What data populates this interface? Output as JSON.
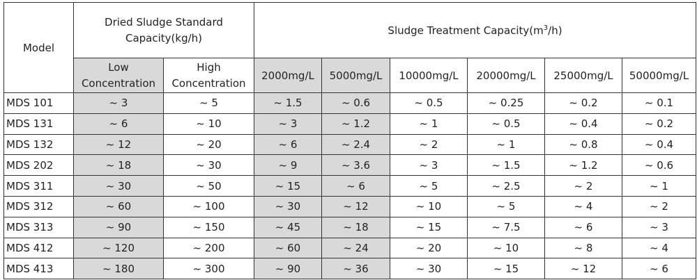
{
  "table": {
    "header": {
      "model": "Model",
      "dried_group": "Dried Sludge Standard Capacity(kg/h)",
      "treatment_group_prefix": "Sludge Treatment Capacity(m",
      "treatment_group_sup": "3",
      "treatment_group_suffix": "/h)",
      "sub": [
        "Low Concentration",
        "High Concentration",
        "2000mg/L",
        "5000mg/L",
        "10000mg/L",
        "20000mg/L",
        "25000mg/L",
        "50000mg/L"
      ]
    },
    "rows": [
      {
        "model": "MDS 101",
        "cells": [
          "~ 3",
          "~ 5",
          "~ 1.5",
          "~ 0.6",
          "~ 0.5",
          "~ 0.25",
          "~ 0.2",
          "~ 0.1"
        ]
      },
      {
        "model": "MDS 131",
        "cells": [
          "~ 6",
          "~ 10",
          "~ 3",
          "~ 1.2",
          "~ 1",
          "~ 0.5",
          "~ 0.4",
          "~ 0.2"
        ]
      },
      {
        "model": "MDS 132",
        "cells": [
          "~ 12",
          "~ 20",
          "~ 6",
          "~ 2.4",
          "~ 2",
          "~ 1",
          "~ 0.8",
          "~ 0.4"
        ]
      },
      {
        "model": "MDS 202",
        "cells": [
          "~ 18",
          "~ 30",
          "~ 9",
          "~ 3.6",
          "~ 3",
          "~ 1.5",
          "~ 1.2",
          "~ 0.6"
        ]
      },
      {
        "model": "MDS 311",
        "cells": [
          "~ 30",
          "~ 50",
          "~ 15",
          "~ 6",
          "~ 5",
          "~ 2.5",
          "~ 2",
          "~ 1"
        ]
      },
      {
        "model": "MDS 312",
        "cells": [
          "~ 60",
          "~ 100",
          "~ 30",
          "~ 12",
          "~ 10",
          "~ 5",
          "~ 4",
          "~ 2"
        ]
      },
      {
        "model": "MDS 313",
        "cells": [
          "~ 90",
          "~ 150",
          "~ 45",
          "~ 18",
          "~ 15",
          "~ 7.5",
          "~ 6",
          "~ 3"
        ]
      },
      {
        "model": "MDS 412",
        "cells": [
          "~ 120",
          "~ 200",
          "~ 60",
          "~ 24",
          "~ 20",
          "~ 10",
          "~ 8",
          "~ 4"
        ]
      },
      {
        "model": "MDS 413",
        "cells": [
          "~ 180",
          "~ 300",
          "~ 90",
          "~ 36",
          "~ 30",
          "~ 15",
          "~ 12",
          "~ 6"
        ]
      }
    ],
    "colors": {
      "shade": "#d9d9d9",
      "border": "#333333"
    }
  }
}
